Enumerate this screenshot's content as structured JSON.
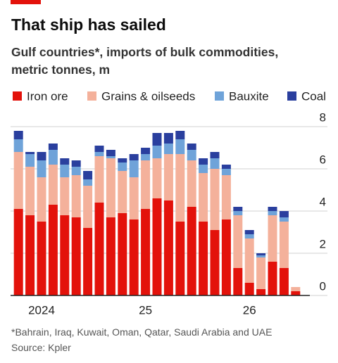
{
  "chart_data": {
    "type": "stacked-bar",
    "title": "That ship has sailed",
    "subtitle": [
      "Gulf countries*, imports of bulk commodities,",
      "metric tonnes, m"
    ],
    "footnote": "*Bahrain, Iraq, Kuwait, Oman, Qatar, Saudi Arabia and UAE",
    "source": "Source: Kpler",
    "categories": [
      null,
      null,
      "2024",
      null,
      null,
      null,
      null,
      null,
      null,
      null,
      null,
      "25",
      null,
      null,
      null,
      null,
      null,
      null,
      null,
      null,
      "26",
      null,
      null,
      null,
      null
    ],
    "series": [
      {
        "name": "Iron ore",
        "color": "#e3120b",
        "values": [
          4.1,
          3.8,
          3.5,
          4.3,
          3.8,
          3.7,
          3.2,
          4.4,
          3.7,
          3.9,
          3.6,
          4.1,
          4.6,
          4.5,
          3.5,
          4.2,
          3.5,
          3.1,
          3.6,
          1.3,
          0.6,
          0.3,
          1.6,
          1.3,
          0.2
        ]
      },
      {
        "name": "Grains & oilseeds",
        "color": "#f4b19b",
        "values": [
          2.7,
          2.3,
          2.1,
          1.9,
          1.8,
          2.0,
          2.0,
          2.2,
          2.8,
          2.0,
          2.0,
          2.3,
          1.9,
          2.2,
          3.2,
          2.2,
          2.3,
          2.9,
          2.1,
          2.5,
          2.1,
          1.5,
          2.2,
          2.2,
          0.2
        ]
      },
      {
        "name": "Bauxite",
        "color": "#6fa3d9",
        "values": [
          0.6,
          0.6,
          0.8,
          0.7,
          0.6,
          0.4,
          0.3,
          0.2,
          0.1,
          0.4,
          0.8,
          0.3,
          0.6,
          0.5,
          0.7,
          0.5,
          0.4,
          0.5,
          0.3,
          0.2,
          0.2,
          0.1,
          0.2,
          0.2,
          0
        ]
      },
      {
        "name": "Coal",
        "color": "#2a3f9e",
        "values": [
          0.4,
          0.1,
          0.4,
          0.3,
          0.3,
          0.3,
          0.4,
          0.3,
          0.3,
          0.2,
          0.3,
          0.3,
          0.6,
          0.5,
          0.4,
          0.3,
          0.3,
          0.3,
          0.2,
          0.2,
          0.2,
          0.1,
          0.2,
          0.3,
          0
        ]
      }
    ],
    "ylim": [
      0,
      8
    ],
    "yticks": [
      0,
      2,
      4,
      6,
      8
    ],
    "grid": true
  }
}
